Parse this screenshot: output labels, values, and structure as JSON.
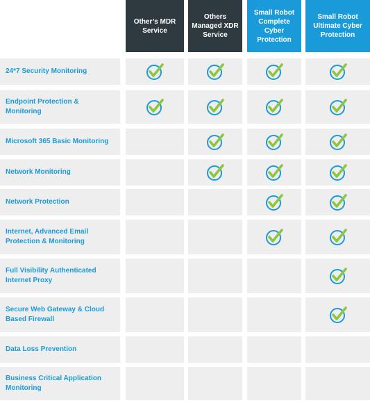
{
  "columns": [
    {
      "label": "Other’s MDR Service",
      "style": "dark"
    },
    {
      "label": "Others Managed XDR Service",
      "style": "dark"
    },
    {
      "label": "Small Robot Complete Cyber Protection",
      "style": "blue"
    },
    {
      "label": "Small Robot Ultimate Cyber Protection",
      "style": "blue"
    }
  ],
  "rows": [
    {
      "feature": "24*7 Security Monitoring",
      "checks": [
        true,
        true,
        true,
        true
      ]
    },
    {
      "feature": "Endpoint Protection & Monitoring",
      "checks": [
        true,
        true,
        true,
        true
      ]
    },
    {
      "feature": "Microsoft 365 Basic Monitoring",
      "checks": [
        false,
        true,
        true,
        true
      ]
    },
    {
      "feature": "Network Monitoring",
      "checks": [
        false,
        true,
        true,
        true
      ]
    },
    {
      "feature": "Network Protection",
      "checks": [
        false,
        false,
        true,
        true
      ]
    },
    {
      "feature": "Internet, Advanced Email Protection & Monitoring",
      "checks": [
        false,
        false,
        true,
        true
      ]
    },
    {
      "feature": "Full Visibility Authenticated Internet Proxy",
      "checks": [
        false,
        false,
        false,
        true
      ]
    },
    {
      "feature": "Secure Web Gateway & Cloud Based Firewall",
      "checks": [
        false,
        false,
        false,
        true
      ]
    },
    {
      "feature": "Data Loss Prevention",
      "checks": [
        false,
        false,
        false,
        false
      ]
    },
    {
      "feature": "Business Critical Application Monitoring",
      "checks": [
        false,
        false,
        false,
        false
      ]
    }
  ],
  "colors": {
    "dark_header": "#2e3a40",
    "blue_header": "#1a9ad8",
    "cell": "#eeeeee",
    "check_green": "#8cc63f",
    "check_ring": "#1a9ad8"
  },
  "icons": {
    "check": "checkmark-circle-icon"
  }
}
